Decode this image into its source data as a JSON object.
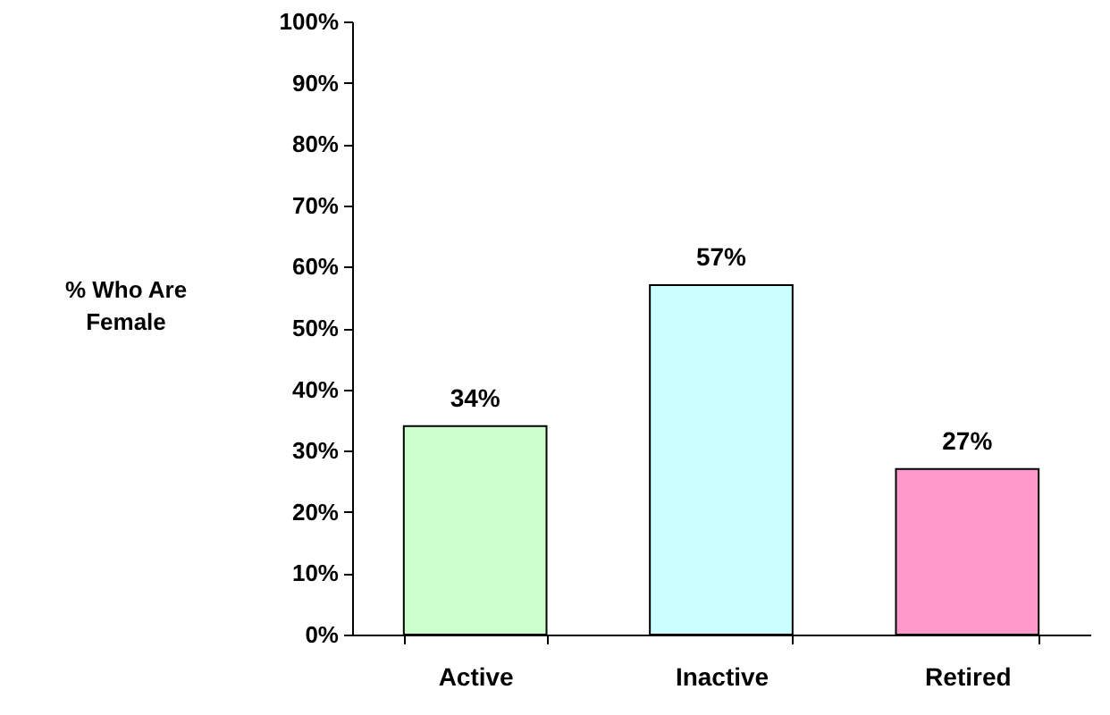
{
  "chart_data": {
    "type": "bar",
    "ylabel": "% Who Are Female",
    "categories": [
      "Active",
      "Inactive",
      "Retired"
    ],
    "values": [
      34,
      57,
      27
    ],
    "colors": [
      "#ccffcc",
      "#ccffff",
      "#ff99cc"
    ],
    "value_labels": [
      "34%",
      "57%",
      "27%"
    ],
    "ylim": [
      0,
      100
    ],
    "yticks": [
      {
        "value": 0,
        "label": "0%"
      },
      {
        "value": 10,
        "label": "10%"
      },
      {
        "value": 20,
        "label": "20%"
      },
      {
        "value": 30,
        "label": "30%"
      },
      {
        "value": 40,
        "label": "40%"
      },
      {
        "value": 50,
        "label": "50%"
      },
      {
        "value": 60,
        "label": "60%"
      },
      {
        "value": 70,
        "label": "70%"
      },
      {
        "value": 80,
        "label": "80%"
      },
      {
        "value": 90,
        "label": "90%"
      },
      {
        "value": 100,
        "label": "100%"
      }
    ],
    "grid": false
  }
}
